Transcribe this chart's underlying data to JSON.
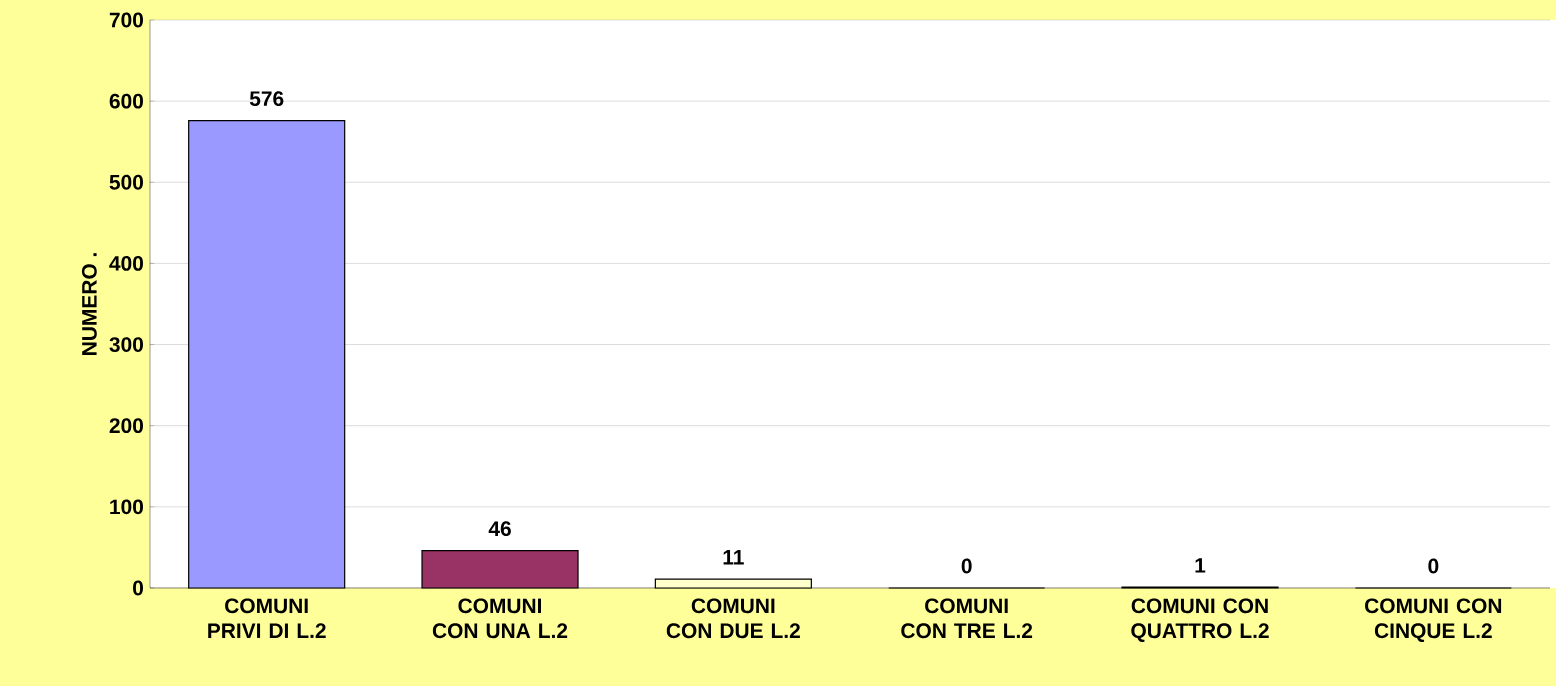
{
  "chart_data": {
    "type": "bar",
    "ylabel": "NUMERO .",
    "categories": [
      "COMUNI PRIVI DI L.2",
      "COMUNI CON UNA L.2",
      "COMUNI CON DUE L.2",
      "COMUNI CON TRE L.2",
      "COMUNI CON QUATTRO L.2",
      "COMUNI CON CINQUE L.2"
    ],
    "values": [
      576,
      46,
      11,
      0,
      1,
      0
    ],
    "colors": [
      "#9999ff",
      "#993366",
      "#ffffcc",
      "#ffffcc",
      "#ccffff",
      "#660066"
    ],
    "ylim": [
      0,
      700
    ],
    "yticks": [
      0,
      100,
      200,
      300,
      400,
      500,
      600,
      700
    ],
    "grid": "y",
    "data_labels": true
  }
}
